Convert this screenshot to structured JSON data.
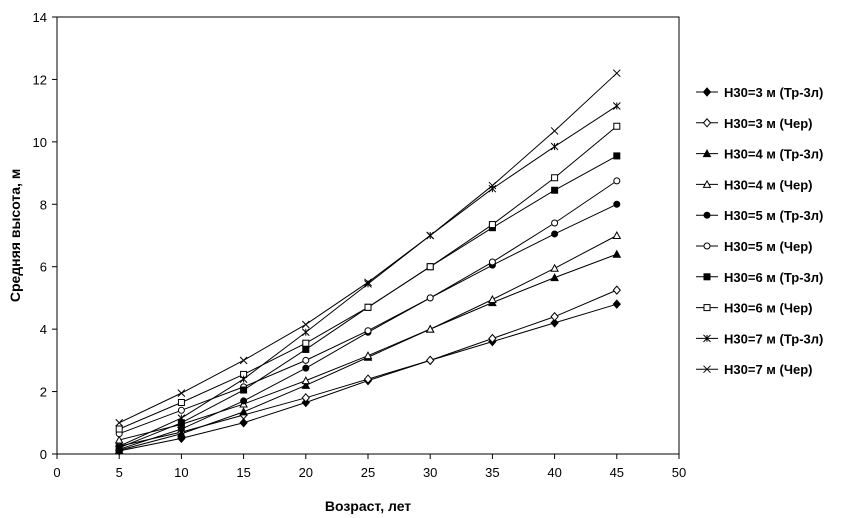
{
  "chart_data": {
    "type": "line",
    "xlabel": "Возраст, лет",
    "ylabel": "Средняя высота, м",
    "xlim": [
      0,
      50
    ],
    "ylim": [
      0,
      14
    ],
    "xticks": [
      "0",
      "5",
      "10",
      "15",
      "20",
      "25",
      "30",
      "35",
      "40",
      "45",
      "50"
    ],
    "yticks": [
      "0",
      "2",
      "4",
      "6",
      "8",
      "10",
      "12",
      "14"
    ],
    "grid": false,
    "legend_position": "right",
    "x": [
      5,
      10,
      15,
      20,
      25,
      30,
      35,
      40,
      45
    ],
    "series": [
      {
        "name": "H30=3 м (Тр-3л)",
        "marker": "diamond-filled",
        "values": [
          0.1,
          0.5,
          1.0,
          1.65,
          2.35,
          3.0,
          3.6,
          4.2,
          4.8
        ]
      },
      {
        "name": "H30=3 м (Чер)",
        "marker": "diamond-open",
        "values": [
          0.25,
          0.7,
          1.25,
          1.8,
          2.4,
          3.0,
          3.7,
          4.4,
          5.25
        ]
      },
      {
        "name": "H30=4 м (Тр-3л)",
        "marker": "triangle-filled",
        "values": [
          0.12,
          0.65,
          1.35,
          2.2,
          3.1,
          4.0,
          4.85,
          5.65,
          6.4
        ]
      },
      {
        "name": "H30=4 м (Чер)",
        "marker": "triangle-open",
        "values": [
          0.45,
          0.95,
          1.6,
          2.35,
          3.15,
          4.0,
          4.95,
          5.95,
          7.0
        ]
      },
      {
        "name": "H30=5 м (Тр-3л)",
        "marker": "circle-filled",
        "values": [
          0.15,
          0.8,
          1.7,
          2.75,
          3.9,
          5.0,
          6.05,
          7.05,
          8.0
        ]
      },
      {
        "name": "H30=5 м (Чер)",
        "marker": "circle-open",
        "values": [
          0.65,
          1.4,
          2.15,
          3.0,
          3.95,
          5.0,
          6.15,
          7.4,
          8.75
        ]
      },
      {
        "name": "H30=6 м (Тр-3л)",
        "marker": "square-filled",
        "values": [
          0.2,
          1.0,
          2.05,
          3.35,
          4.7,
          6.0,
          7.25,
          8.45,
          9.55
        ]
      },
      {
        "name": "H30=6 м (Чер)",
        "marker": "square-open",
        "values": [
          0.8,
          1.65,
          2.55,
          3.55,
          4.7,
          6.0,
          7.35,
          8.85,
          10.5
        ]
      },
      {
        "name": "H30=7 м (Тр-3л)",
        "marker": "star",
        "values": [
          0.25,
          1.15,
          2.4,
          3.9,
          5.45,
          7.0,
          8.5,
          9.85,
          11.15
        ]
      },
      {
        "name": "H30=7 м (Чер)",
        "marker": "x",
        "values": [
          1.0,
          1.95,
          3.0,
          4.15,
          5.5,
          7.0,
          8.6,
          10.35,
          12.2
        ]
      }
    ]
  }
}
